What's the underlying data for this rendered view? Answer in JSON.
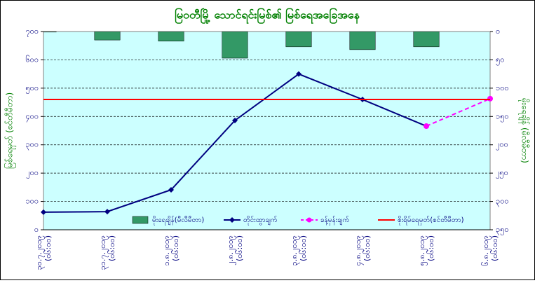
{
  "chart_data": {
    "type": "combo",
    "title": "မြဝတီမြို့ သောင်ရင်းမြစ်၏ မြစ်ရေအခြေအနေ",
    "y_label": "မြစ်ရေမှတ် (စင်တီမီတာ)",
    "y2_label": "မိုးရေချိန် (မီလီမီတာ)",
    "categories": [
      "၃၀.၇.၂၀၁၉ (၀၆:၀၀)",
      "၃၁.၇.၂၀၁၉ (၀၆:၀၀)",
      "၁.၈.၂၀၁၉ (၀၆:၀၀)",
      "၂.၈.၂၀၁၉ (၀၆:၀၀)",
      "၃.၈.၂၀၁၉ (၀၆:၀၀)",
      "၄.၈.၂၀၁၉ (၀၆:၀၀)",
      "၅.၈.၂၀၁၉ (၀၆:၀၀)",
      "၆.၈.၂၀၁၉ (၀၆:၀၀)"
    ],
    "series": [
      {
        "name": "မိုးရေချိန်(မီလီမီတာ)",
        "kind": "bar",
        "axis": "y2",
        "color": "#339966",
        "values": [
          1,
          15,
          17,
          47,
          27,
          32,
          27,
          null
        ]
      },
      {
        "name": "တိုင်းထွာချက်",
        "kind": "line",
        "color": "#000080",
        "marker": "diamond",
        "values": [
          62,
          64,
          141,
          386,
          550,
          460,
          366,
          null
        ]
      },
      {
        "name": "ခန့်မှန်းချက်",
        "kind": "line",
        "color": "#ff00ff",
        "dashed": true,
        "marker": "circle",
        "values": [
          null,
          null,
          null,
          null,
          null,
          null,
          366,
          463
        ]
      },
      {
        "name": "စိုးရိမ်ရေမှတ်(စင်တီမီတာ)",
        "kind": "hline",
        "color": "#ff0000",
        "values": [
          460,
          460,
          460,
          460,
          460,
          460,
          460,
          460
        ]
      }
    ],
    "ylim": [
      0,
      700
    ],
    "yticks": [
      {
        "value": 0,
        "label": "၀"
      },
      {
        "value": 100,
        "label": "၁၀၀"
      },
      {
        "value": 200,
        "label": "၂၀၀"
      },
      {
        "value": 300,
        "label": "၃၀၀"
      },
      {
        "value": 400,
        "label": "၄၀၀"
      },
      {
        "value": 500,
        "label": "၅၀၀"
      },
      {
        "value": 600,
        "label": "၆၀၀"
      },
      {
        "value": 700,
        "label": "၇၀၀"
      }
    ],
    "y2lim": [
      0,
      350
    ],
    "y2_reversed": true,
    "y2ticks": [
      {
        "value": 0,
        "label": "၀"
      },
      {
        "value": 50,
        "label": "၅၀"
      },
      {
        "value": 100,
        "label": "၁၀၀"
      },
      {
        "value": 150,
        "label": "၁၅၀"
      },
      {
        "value": 200,
        "label": "၂၀၀"
      },
      {
        "value": 250,
        "label": "၂၅၀"
      },
      {
        "value": 300,
        "label": "၃၀၀"
      },
      {
        "value": 350,
        "label": "၃၅၀"
      }
    ],
    "grid": true,
    "legend": "bottom-right",
    "plot_background": "#ccffff"
  }
}
